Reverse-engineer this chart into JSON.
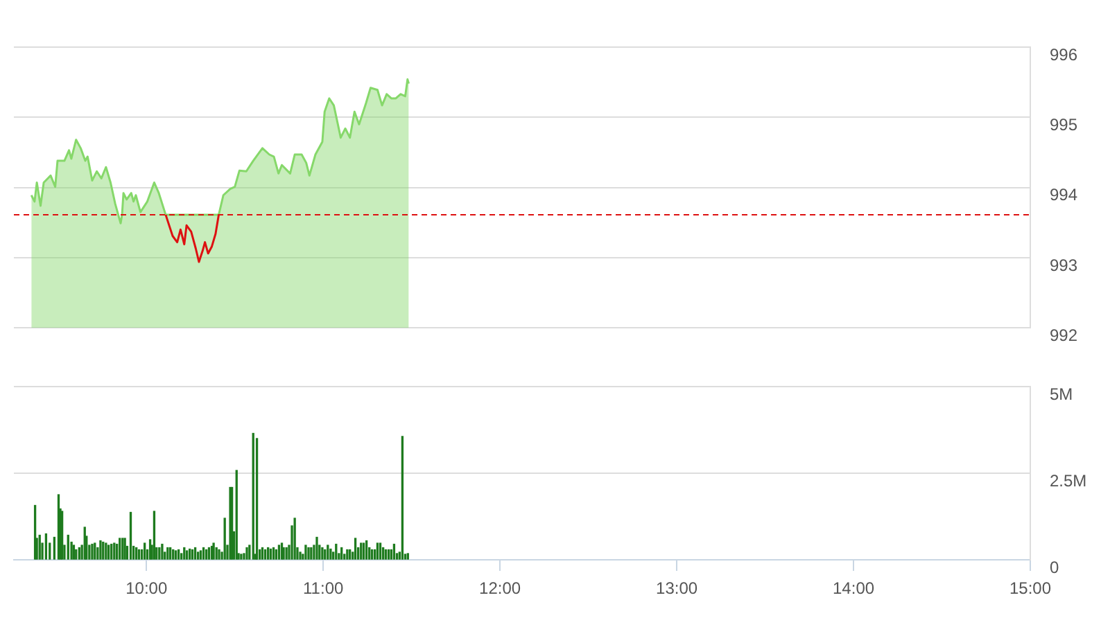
{
  "chart_data": [
    {
      "type": "area",
      "x": [
        9.349,
        9.367,
        9.38,
        9.401,
        9.419,
        9.458,
        9.484,
        9.497,
        9.536,
        9.562,
        9.575,
        9.602,
        9.628,
        9.654,
        9.667,
        9.693,
        9.719,
        9.745,
        9.771,
        9.797,
        9.823,
        9.844,
        9.854,
        9.862,
        9.87,
        9.888,
        9.914,
        9.927,
        9.94,
        9.966,
        10.005,
        10.044,
        10.07,
        10.109,
        10.148,
        10.174,
        10.193,
        10.214,
        10.227,
        10.253,
        10.279,
        10.297,
        10.318,
        10.331,
        10.349,
        10.37,
        10.391,
        10.409,
        10.435,
        10.474,
        10.5,
        10.526,
        10.565,
        10.604,
        10.656,
        10.695,
        10.721,
        10.747,
        10.766,
        10.813,
        10.839,
        10.878,
        10.904,
        10.922,
        10.956,
        10.995,
        11.008,
        11.034,
        11.06,
        11.099,
        11.125,
        11.151,
        11.177,
        11.203,
        11.242,
        11.268,
        11.307,
        11.333,
        11.359,
        11.385,
        11.411,
        11.438,
        11.464,
        11.477,
        11.484
      ],
      "series": [
        {
          "color": "#86d86a",
          "values": [
            993.89,
            993.8,
            994.07,
            993.74,
            994.07,
            994.17,
            994.01,
            994.38,
            994.38,
            994.53,
            994.41,
            994.68,
            994.56,
            994.38,
            994.44,
            994.1,
            994.23,
            994.13,
            994.29,
            994.07,
            993.77,
            993.58,
            993.49,
            993.61,
            993.92,
            993.83,
            993.92,
            993.8,
            993.89,
            993.65,
            993.8,
            994.07,
            993.92,
            993.61,
            null,
            null,
            null,
            null,
            null,
            null,
            null,
            null,
            null,
            null,
            null,
            null,
            null,
            993.61,
            993.89,
            993.98,
            994.01,
            994.24,
            994.23,
            994.38,
            994.56,
            994.47,
            994.44,
            994.2,
            994.32,
            994.2,
            994.47,
            994.47,
            994.35,
            994.17,
            994.47,
            994.65,
            995.08,
            995.27,
            995.17,
            994.71,
            994.84,
            994.71,
            995.08,
            994.9,
            995.2,
            995.42,
            995.39,
            995.17,
            995.33,
            995.27,
            995.27,
            995.33,
            995.3,
            995.54,
            995.48
          ]
        },
        {
          "type": "line",
          "color": "#dd1111",
          "values": [
            null,
            null,
            null,
            null,
            null,
            null,
            null,
            null,
            null,
            null,
            null,
            null,
            null,
            null,
            null,
            null,
            null,
            null,
            null,
            null,
            null,
            null,
            null,
            null,
            null,
            null,
            null,
            null,
            null,
            null,
            null,
            null,
            null,
            993.61,
            993.31,
            993.22,
            993.4,
            993.19,
            993.46,
            993.37,
            993.13,
            992.94,
            993.1,
            993.22,
            993.06,
            993.16,
            993.34,
            993.61,
            null,
            null,
            null,
            null,
            null,
            null,
            null,
            null,
            null,
            null,
            null,
            null,
            null,
            null,
            null,
            null,
            null,
            null,
            null,
            null,
            null,
            null,
            null,
            null,
            null,
            null,
            null,
            null,
            null,
            null,
            null,
            null,
            null,
            null,
            null,
            null,
            null
          ]
        }
      ],
      "xlim": [
        9.25,
        15
      ],
      "ylim": [
        992,
        996
      ],
      "yticks": [
        992,
        993,
        994,
        995,
        996
      ],
      "grid": "y",
      "tick_labels": "y",
      "ref_lines": [
        {
          "axis": "y",
          "value": 993.61,
          "color": "#dd1111",
          "line_style": "dashed"
        }
      ]
    },
    {
      "type": "bar",
      "x": [
        9.37,
        9.38,
        9.396,
        9.411,
        9.432,
        9.453,
        9.479,
        9.503,
        9.513,
        9.523,
        9.536,
        9.557,
        9.576,
        9.589,
        9.602,
        9.62,
        9.635,
        9.651,
        9.661,
        9.677,
        9.693,
        9.708,
        9.724,
        9.74,
        9.755,
        9.771,
        9.786,
        9.802,
        9.818,
        9.833,
        9.849,
        9.865,
        9.878,
        9.891,
        9.911,
        9.927,
        9.943,
        9.958,
        9.974,
        9.99,
        10.005,
        10.021,
        10.031,
        10.044,
        10.057,
        10.073,
        10.089,
        10.104,
        10.12,
        10.135,
        10.151,
        10.166,
        10.182,
        10.198,
        10.214,
        10.229,
        10.245,
        10.26,
        10.276,
        10.292,
        10.307,
        10.323,
        10.339,
        10.354,
        10.37,
        10.38,
        10.396,
        10.411,
        10.427,
        10.443,
        10.458,
        10.474,
        10.484,
        10.495,
        10.51,
        10.521,
        10.536,
        10.552,
        10.568,
        10.583,
        10.604,
        10.615,
        10.625,
        10.641,
        10.656,
        10.672,
        10.688,
        10.703,
        10.719,
        10.734,
        10.75,
        10.766,
        10.776,
        10.792,
        10.807,
        10.823,
        10.839,
        10.854,
        10.87,
        10.885,
        10.901,
        10.917,
        10.932,
        10.948,
        10.964,
        10.979,
        10.995,
        11.01,
        11.026,
        11.042,
        11.057,
        11.073,
        11.089,
        11.104,
        11.12,
        11.136,
        11.151,
        11.167,
        11.182,
        11.198,
        11.214,
        11.229,
        11.245,
        11.261,
        11.276,
        11.292,
        11.307,
        11.323,
        11.339,
        11.354,
        11.37,
        11.385,
        11.401,
        11.417,
        11.432,
        11.448,
        11.464,
        11.479
      ],
      "values": [
        1.57,
        0.62,
        0.71,
        0.48,
        0.75,
        0.48,
        0.65,
        1.88,
        1.47,
        1.4,
        0.42,
        0.71,
        0.51,
        0.42,
        0.29,
        0.35,
        0.42,
        0.94,
        0.68,
        0.42,
        0.45,
        0.48,
        0.35,
        0.55,
        0.51,
        0.48,
        0.42,
        0.45,
        0.48,
        0.45,
        0.62,
        0.62,
        0.62,
        0.39,
        1.37,
        0.39,
        0.35,
        0.29,
        0.29,
        0.48,
        0.29,
        0.58,
        0.42,
        1.4,
        0.35,
        0.35,
        0.45,
        0.22,
        0.35,
        0.35,
        0.29,
        0.26,
        0.29,
        0.18,
        0.35,
        0.26,
        0.31,
        0.29,
        0.35,
        0.22,
        0.26,
        0.35,
        0.29,
        0.35,
        0.39,
        0.48,
        0.35,
        0.29,
        0.22,
        1.2,
        0.42,
        2.09,
        2.09,
        0.81,
        2.58,
        0.18,
        0.16,
        0.18,
        0.35,
        0.42,
        3.65,
        0.16,
        3.5,
        0.29,
        0.35,
        0.29,
        0.35,
        0.31,
        0.35,
        0.29,
        0.42,
        0.48,
        0.35,
        0.35,
        0.42,
        0.98,
        1.2,
        0.35,
        0.22,
        0.16,
        0.42,
        0.35,
        0.35,
        0.42,
        0.65,
        0.42,
        0.35,
        0.29,
        0.42,
        0.31,
        0.22,
        0.45,
        0.18,
        0.35,
        0.16,
        0.29,
        0.29,
        0.22,
        0.62,
        0.35,
        0.48,
        0.48,
        0.55,
        0.35,
        0.29,
        0.29,
        0.48,
        0.48,
        0.35,
        0.29,
        0.29,
        0.29,
        0.45,
        0.18,
        0.22,
        3.56,
        0.16,
        0.18
      ],
      "color": "#1e7b1e",
      "xlim": [
        9.25,
        15
      ],
      "xticks": [
        {
          "value": 10,
          "label": "10:00"
        },
        {
          "value": 11,
          "label": "11:00"
        },
        {
          "value": 12,
          "label": "12:00"
        },
        {
          "value": 13,
          "label": "13:00"
        },
        {
          "value": 14,
          "label": "14:00"
        },
        {
          "value": 15,
          "label": "15:00"
        }
      ],
      "ylim": [
        0,
        5
      ],
      "yticks": [
        {
          "value": 0,
          "label": "0"
        },
        {
          "value": 2.5,
          "label": "2.5M"
        },
        {
          "value": 5,
          "label": "5M"
        }
      ],
      "grid": "y"
    }
  ]
}
